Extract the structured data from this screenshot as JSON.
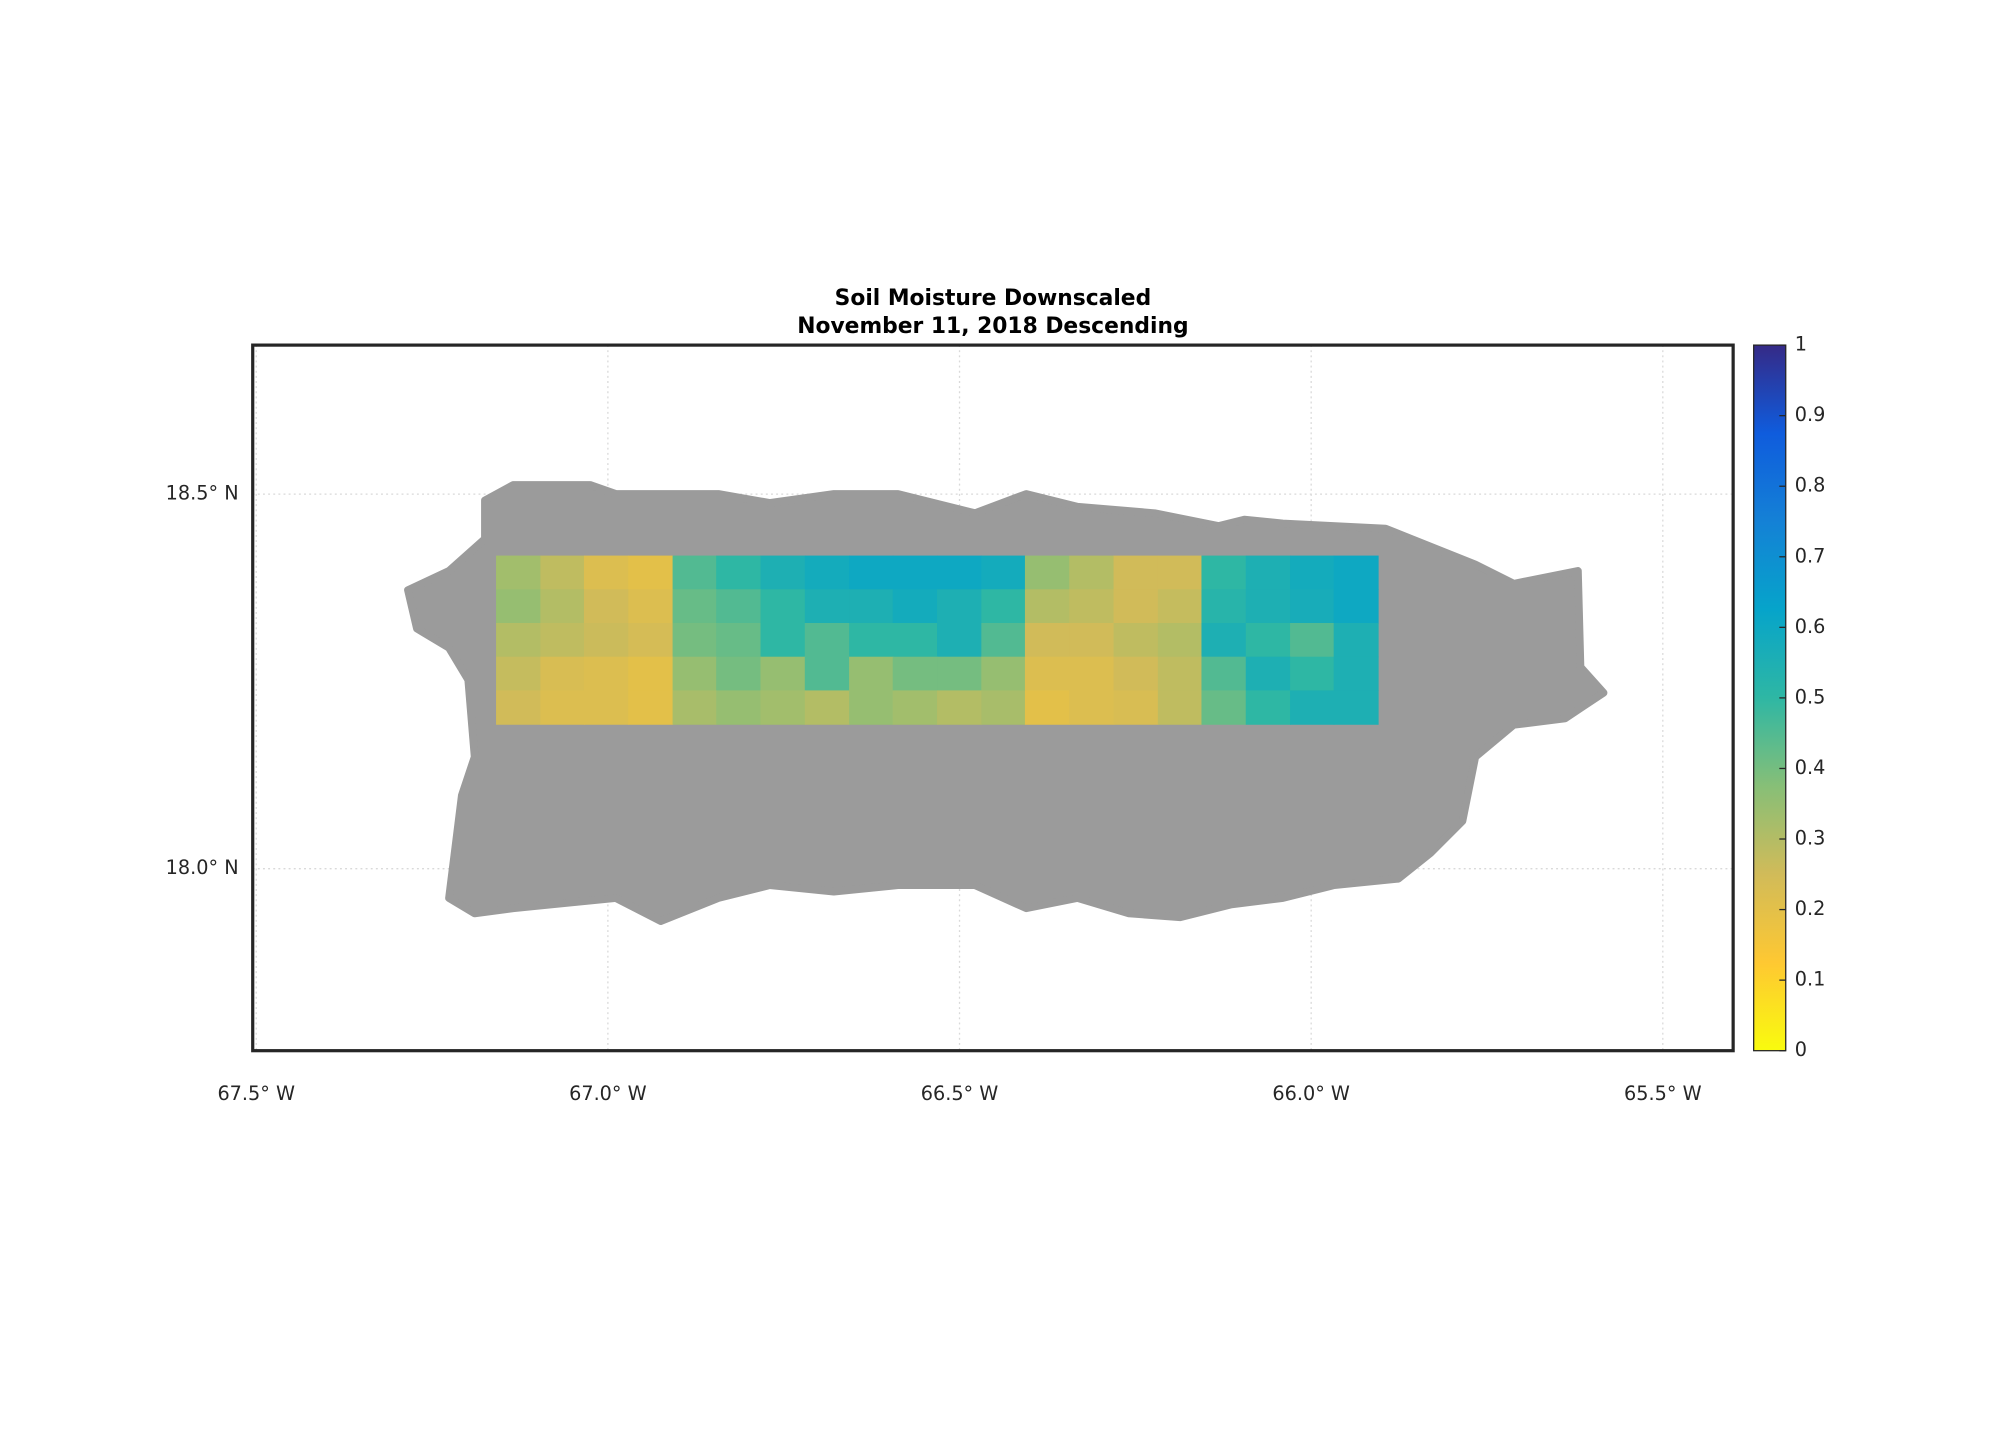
{
  "chart_data": {
    "type": "map",
    "title": "Soil Moisture Downscaled",
    "subtitle": "November 11, 2018 Descending",
    "xlim": [
      -67.505,
      -65.4
    ],
    "ylim": [
      17.757,
      18.699
    ],
    "xticks": [
      {
        "value": -67.5,
        "label": "67.5° W"
      },
      {
        "value": -67.0,
        "label": "67.0° W"
      },
      {
        "value": -66.5,
        "label": "66.5° W"
      },
      {
        "value": -66.0,
        "label": "66.0° W"
      },
      {
        "value": -65.5,
        "label": "65.5° W"
      }
    ],
    "yticks": [
      {
        "value": 18.5,
        "label": "18.5° N"
      },
      {
        "value": 18.0,
        "label": "18.0° N"
      }
    ],
    "grid": true,
    "land_color": "#9b9b9b",
    "colormap": [
      "#f9fb0e",
      "#fec832",
      "#d1bb59",
      "#87bf77",
      "#2eb7a4",
      "#06a4ca",
      "#1481d6",
      "#0f5cdd",
      "#352a87"
    ],
    "clim": [
      0,
      1
    ],
    "cticks": [
      0,
      0.1,
      0.2,
      0.3,
      0.4,
      0.5,
      0.6,
      0.7,
      0.8,
      0.9,
      1
    ],
    "x_edges": [
      -67.159,
      -67.096,
      -67.034,
      -66.971,
      -66.908,
      -66.846,
      -66.783,
      -66.72,
      -66.657,
      -66.595,
      -66.532,
      -66.469,
      -66.407,
      -66.344,
      -66.281,
      -66.218,
      -66.156,
      -66.093,
      -66.03,
      -65.968,
      -65.905
    ],
    "y_edges": [
      18.418,
      18.373,
      18.328,
      18.283,
      18.238,
      18.193
    ],
    "z": [
      [
        0.33,
        0.28,
        0.22,
        0.2,
        0.45,
        0.5,
        0.55,
        0.58,
        0.6,
        0.6,
        0.6,
        0.58,
        0.35,
        0.3,
        0.25,
        0.25,
        0.5,
        0.55,
        0.58,
        0.6
      ],
      [
        0.35,
        0.3,
        0.25,
        0.22,
        0.42,
        0.45,
        0.5,
        0.55,
        0.55,
        0.58,
        0.55,
        0.5,
        0.3,
        0.28,
        0.25,
        0.27,
        0.52,
        0.55,
        0.57,
        0.6
      ],
      [
        0.3,
        0.28,
        0.26,
        0.24,
        0.4,
        0.42,
        0.5,
        0.45,
        0.5,
        0.5,
        0.55,
        0.45,
        0.25,
        0.25,
        0.28,
        0.3,
        0.55,
        0.5,
        0.45,
        0.55
      ],
      [
        0.27,
        0.23,
        0.22,
        0.2,
        0.35,
        0.4,
        0.35,
        0.45,
        0.35,
        0.4,
        0.4,
        0.35,
        0.22,
        0.22,
        0.25,
        0.28,
        0.45,
        0.55,
        0.5,
        0.55
      ],
      [
        0.25,
        0.22,
        0.22,
        0.2,
        0.32,
        0.35,
        0.33,
        0.3,
        0.35,
        0.33,
        0.3,
        0.32,
        0.2,
        0.22,
        0.23,
        0.28,
        0.42,
        0.5,
        0.55,
        0.55
      ]
    ]
  }
}
